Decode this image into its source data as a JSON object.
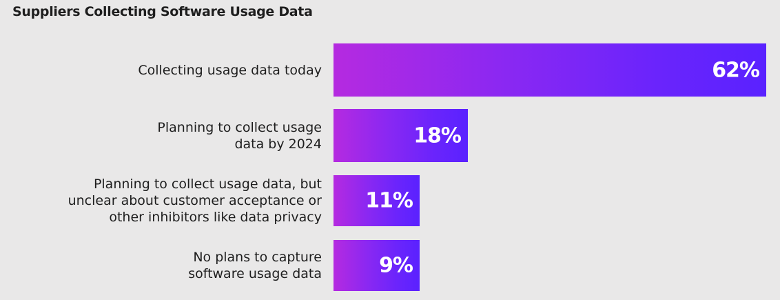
{
  "chart_data": {
    "type": "bar",
    "orientation": "horizontal",
    "title": "Suppliers Collecting Software Usage Data",
    "categories": [
      "Collecting usage data today",
      "Planning to collect usage data by 2024",
      "Planning to collect usage data, but unclear about customer acceptance or other inhibitors like data privacy",
      "No plans to capture software usage data"
    ],
    "label_lines": [
      [
        "Collecting usage data today"
      ],
      [
        "Planning to collect usage",
        "data by 2024"
      ],
      [
        "Planning to collect usage data, but",
        "unclear about customer acceptance or",
        "other inhibitors like data privacy"
      ],
      [
        "No plans to capture",
        "software usage data"
      ]
    ],
    "values": [
      62,
      18,
      11,
      9
    ],
    "data_labels": [
      "62%",
      "18%",
      "11%",
      "9%"
    ],
    "unit": "%",
    "colors": {
      "gradient_start": "#b52ae0",
      "gradient_end": "#5a22ff",
      "background": "#e9e8e8"
    },
    "grid": false,
    "legend": "none"
  }
}
